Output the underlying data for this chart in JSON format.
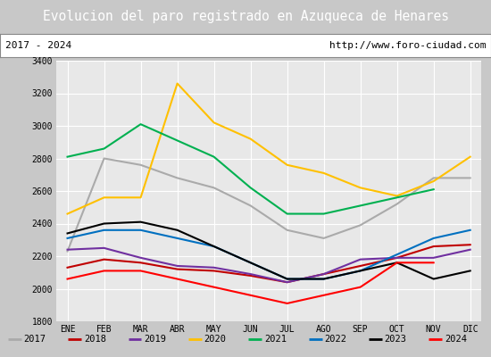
{
  "title": "Evolucion del paro registrado en Azuqueca de Henares",
  "subtitle_left": "2017 - 2024",
  "subtitle_right": "http://www.foro-ciudad.com",
  "title_bg": "#4f81bd",
  "title_color": "white",
  "months": [
    "ENE",
    "FEB",
    "MAR",
    "ABR",
    "MAY",
    "JUN",
    "JUL",
    "AGO",
    "SEP",
    "OCT",
    "NOV",
    "DIC"
  ],
  "ylim": [
    1800,
    3400
  ],
  "yticks": [
    1800,
    2000,
    2200,
    2400,
    2600,
    2800,
    3000,
    3200,
    3400
  ],
  "series": {
    "2017": {
      "color": "#aaaaaa",
      "data": [
        2230,
        2800,
        2760,
        2680,
        2620,
        2510,
        2360,
        2310,
        2390,
        2520,
        2680,
        2680
      ]
    },
    "2018": {
      "color": "#c00000",
      "data": [
        2130,
        2180,
        2160,
        2120,
        2110,
        2080,
        2040,
        2090,
        2140,
        2190,
        2260,
        2270
      ]
    },
    "2019": {
      "color": "#7030a0",
      "data": [
        2240,
        2250,
        2190,
        2140,
        2130,
        2090,
        2040,
        2090,
        2180,
        2190,
        2190,
        2240
      ]
    },
    "2020": {
      "color": "#ffc000",
      "data": [
        2460,
        2560,
        2560,
        3260,
        3020,
        2920,
        2760,
        2710,
        2620,
        2570,
        2660,
        2810
      ]
    },
    "2021": {
      "color": "#00b050",
      "data": [
        2810,
        2860,
        3010,
        2910,
        2810,
        2620,
        2460,
        2460,
        2510,
        2560,
        2610,
        null
      ]
    },
    "2022": {
      "color": "#0070c0",
      "data": [
        2310,
        2360,
        2360,
        2310,
        2260,
        2160,
        2060,
        2060,
        2110,
        2210,
        2310,
        2360
      ]
    },
    "2023": {
      "color": "#000000",
      "data": [
        2340,
        2400,
        2410,
        2360,
        2260,
        2160,
        2060,
        2060,
        2110,
        2160,
        2060,
        2110
      ]
    },
    "2024": {
      "color": "#ff0000",
      "data": [
        2060,
        2110,
        2110,
        2060,
        2010,
        1960,
        1910,
        1960,
        2010,
        2160,
        2160,
        null
      ]
    }
  },
  "legend_order": [
    "2017",
    "2018",
    "2019",
    "2020",
    "2021",
    "2022",
    "2023",
    "2024"
  ],
  "plot_bg": "#e8e8e8",
  "grid_color": "white",
  "fig_bg": "#d0d0d0"
}
